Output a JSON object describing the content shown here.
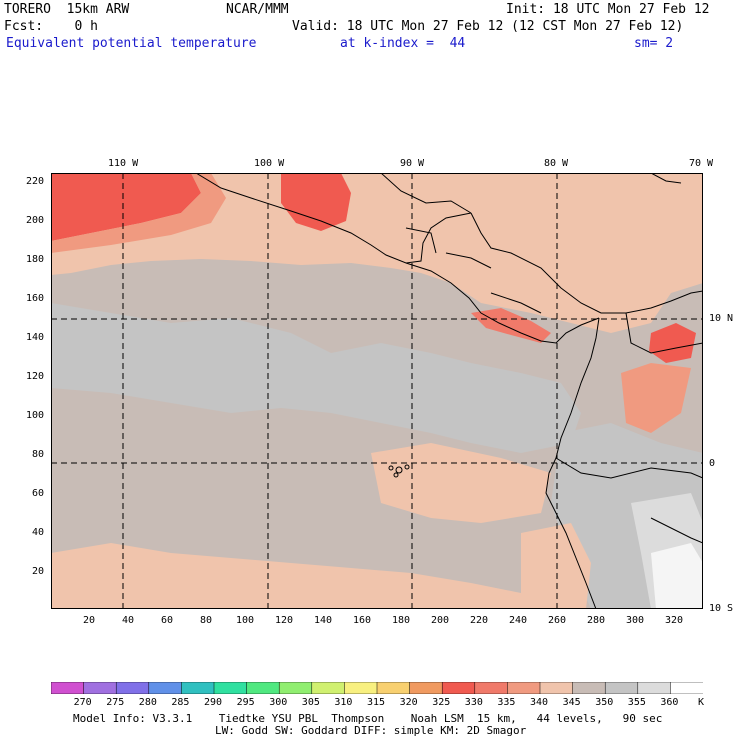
{
  "header": {
    "line1_left": "TORERO  15km ARW",
    "line1_center": "NCAR/MMM",
    "line1_right": "Init: 18 UTC Mon 27 Feb 12",
    "line2_left": "Fcst:    0 h",
    "line2_right": "Valid: 18 UTC Mon 27 Feb 12 (12 CST Mon 27 Feb 12)",
    "line3_field": "Equivalent potential temperature",
    "line3_level": "at k-index =  44",
    "line3_smooth": "sm= 2"
  },
  "map": {
    "top_lon_labels": [
      "110 W",
      "100 W",
      "90 W",
      "80 W",
      "70 W"
    ],
    "right_lat_labels": [
      "10 N",
      "0",
      "10 S"
    ],
    "left_grid_ticks": [
      "220",
      "200",
      "180",
      "160",
      "140",
      "120",
      "100",
      "80",
      "60",
      "40",
      "20"
    ],
    "bottom_grid_ticks": [
      "20",
      "40",
      "60",
      "80",
      "100",
      "120",
      "140",
      "160",
      "180",
      "200",
      "220",
      "240",
      "260",
      "280",
      "300",
      "320"
    ],
    "colors": {
      "c340": "#f0c4ac",
      "c345": "#c8bcb6",
      "c350": "#c4c4c4",
      "c355": "#dcdcdc",
      "c360": "#f5f5f5",
      "c335": "#f09a80",
      "c330": "#f05a50",
      "c325": "#f07a6a",
      "coast": "#000000",
      "grid": "#000000"
    }
  },
  "colorbar": {
    "labels": [
      "270",
      "275",
      "280",
      "285",
      "290",
      "295",
      "300",
      "305",
      "310",
      "315",
      "320",
      "325",
      "330",
      "335",
      "340",
      "345",
      "350",
      "355",
      "360"
    ],
    "unit": "K",
    "colors": [
      "#d050d0",
      "#a070e0",
      "#8070e8",
      "#6090e8",
      "#30c0c0",
      "#30e0a0",
      "#50e880",
      "#90ee70",
      "#d0f070",
      "#f8f080",
      "#f8d070",
      "#f09a60",
      "#f05a50",
      "#f07a6a",
      "#f09a80",
      "#f0c4ac",
      "#c8bcb6",
      "#c4c4c4",
      "#dcdcdc",
      "#ffffff"
    ]
  },
  "footer": {
    "line1": "Model Info: V3.3.1    Tiedtke YSU PBL  Thompson    Noah LSM  15 km,   44 levels,   90 sec",
    "line2": "LW: Godd SW: Goddard DIFF: simple KM: 2D Smagor"
  }
}
